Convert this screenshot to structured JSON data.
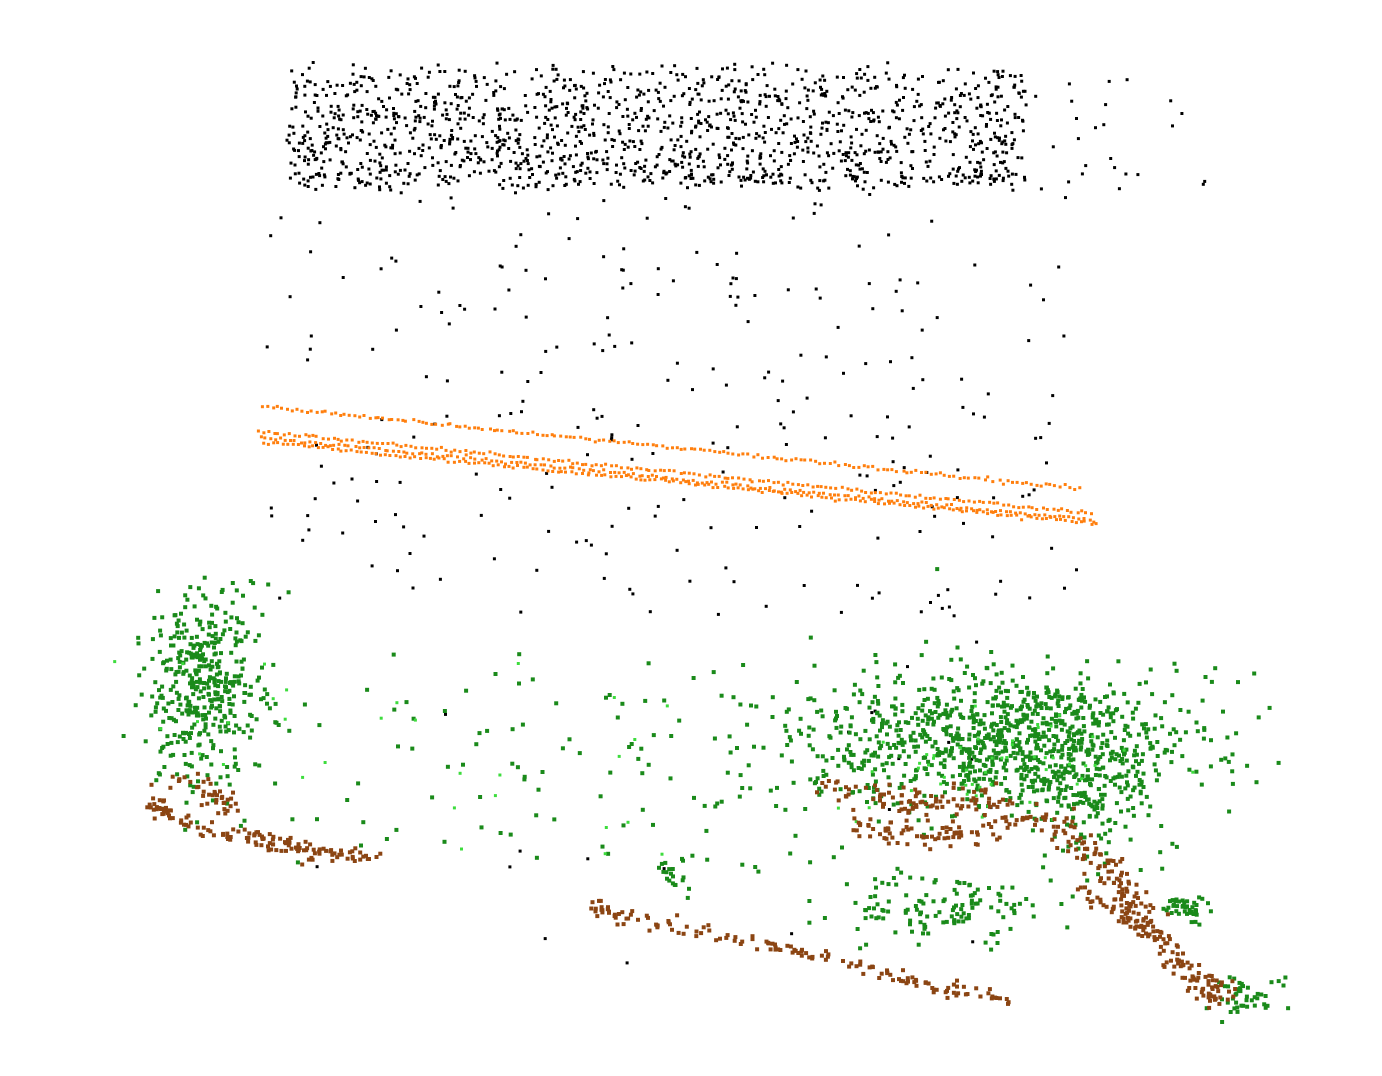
{
  "scene": {
    "background": "#ffffff",
    "classes": [
      {
        "id": "unclassified",
        "color": "#000000",
        "share": 0.31
      },
      {
        "id": "wire",
        "color": "#ff7f0e",
        "share": 0.07
      },
      {
        "id": "vegetation",
        "color": "#1a8a1a",
        "share": 0.42
      },
      {
        "id": "vegetation-bright",
        "color": "#3ddc3d",
        "share": 0.03
      },
      {
        "id": "ground",
        "color": "#8b4513",
        "share": 0.17
      }
    ]
  }
}
